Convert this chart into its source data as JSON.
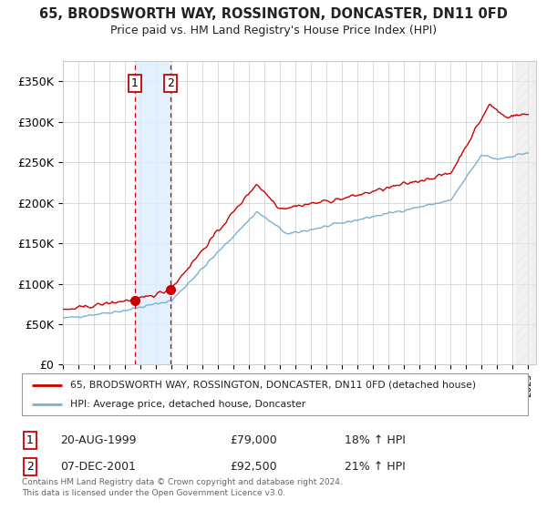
{
  "title": "65, BRODSWORTH WAY, ROSSINGTON, DONCASTER, DN11 0FD",
  "subtitle": "Price paid vs. HM Land Registry's House Price Index (HPI)",
  "ylim": [
    0,
    375000
  ],
  "yticks": [
    0,
    50000,
    100000,
    150000,
    200000,
    250000,
    300000,
    350000
  ],
  "ytick_labels": [
    "£0",
    "£50K",
    "£100K",
    "£150K",
    "£200K",
    "£250K",
    "£300K",
    "£350K"
  ],
  "sale1": {
    "date_num": 1999.64,
    "price": 79000,
    "label": "1",
    "date_str": "20-AUG-1999",
    "hpi_pct": "18%"
  },
  "sale2": {
    "date_num": 2001.93,
    "price": 92500,
    "label": "2",
    "date_str": "07-DEC-2001",
    "hpi_pct": "21%"
  },
  "line_color_red": "#cc0000",
  "line_color_blue": "#7bafd4",
  "legend_line1": "65, BRODSWORTH WAY, ROSSINGTON, DONCASTER, DN11 0FD (detached house)",
  "legend_line2": "HPI: Average price, detached house, Doncaster",
  "footer": "Contains HM Land Registry data © Crown copyright and database right 2024.\nThis data is licensed under the Open Government Licence v3.0.",
  "table_row1": [
    "1",
    "20-AUG-1999",
    "£79,000",
    "18% ↑ HPI"
  ],
  "table_row2": [
    "2",
    "07-DEC-2001",
    "£92,500",
    "21% ↑ HPI"
  ],
  "background_color": "#ffffff",
  "grid_color": "#cccccc",
  "shaded_region_color": "#ddeeff",
  "hatch_color": "#e0e0e0",
  "xlim_start": 1995,
  "xlim_end": 2025.5,
  "hatch_start": 2024.17
}
